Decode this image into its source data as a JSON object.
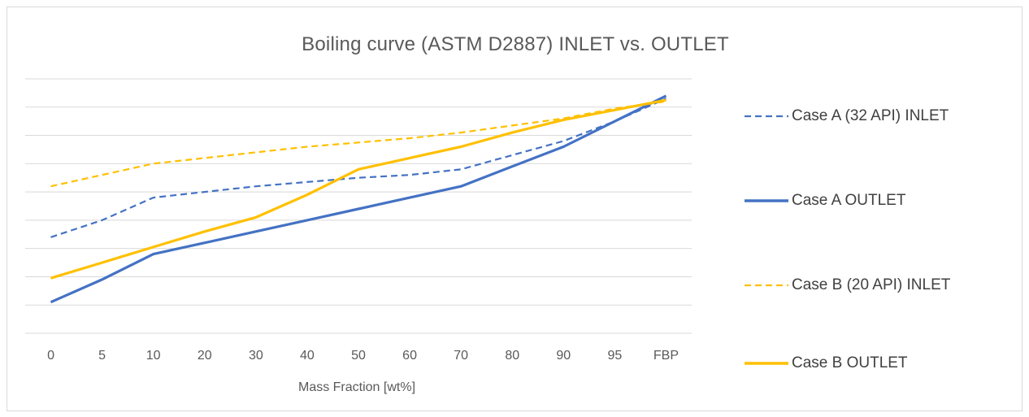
{
  "chart_data": {
    "type": "line",
    "title": "Boiling curve (ASTM D2887) INLET vs. OUTLET",
    "xlabel": "Mass Fraction [wt%]",
    "ylabel": "",
    "categories": [
      "0",
      "5",
      "10",
      "20",
      "30",
      "40",
      "50",
      "60",
      "70",
      "80",
      "90",
      "95",
      "FBP"
    ],
    "ylim": [
      0,
      9
    ],
    "y_gridlines": 9,
    "y_tick_labels_shown": false,
    "grid": true,
    "legend_position": "right",
    "series": [
      {
        "name": "Case A (32 API) INLET",
        "color": "#4472c4",
        "dash": "dashed",
        "values": [
          3.4,
          4.0,
          4.8,
          5.0,
          5.2,
          5.35,
          5.5,
          5.6,
          5.8,
          6.3,
          6.8,
          7.5,
          8.3
        ]
      },
      {
        "name": "Case A OUTLET",
        "color": "#4472c4",
        "dash": "solid",
        "values": [
          1.1,
          1.9,
          2.8,
          3.2,
          3.6,
          4.0,
          4.4,
          4.8,
          5.2,
          5.9,
          6.6,
          7.5,
          8.4
        ]
      },
      {
        "name": "Case B (20 API) INLET",
        "color": "#ffc000",
        "dash": "dashed",
        "values": [
          5.2,
          5.6,
          6.0,
          6.2,
          6.4,
          6.6,
          6.75,
          6.9,
          7.1,
          7.35,
          7.6,
          7.95,
          8.2
        ]
      },
      {
        "name": "Case B OUTLET",
        "color": "#ffc000",
        "dash": "solid",
        "values": [
          1.95,
          2.5,
          3.05,
          3.6,
          4.1,
          4.9,
          5.8,
          6.2,
          6.6,
          7.1,
          7.55,
          7.9,
          8.25
        ]
      }
    ]
  }
}
